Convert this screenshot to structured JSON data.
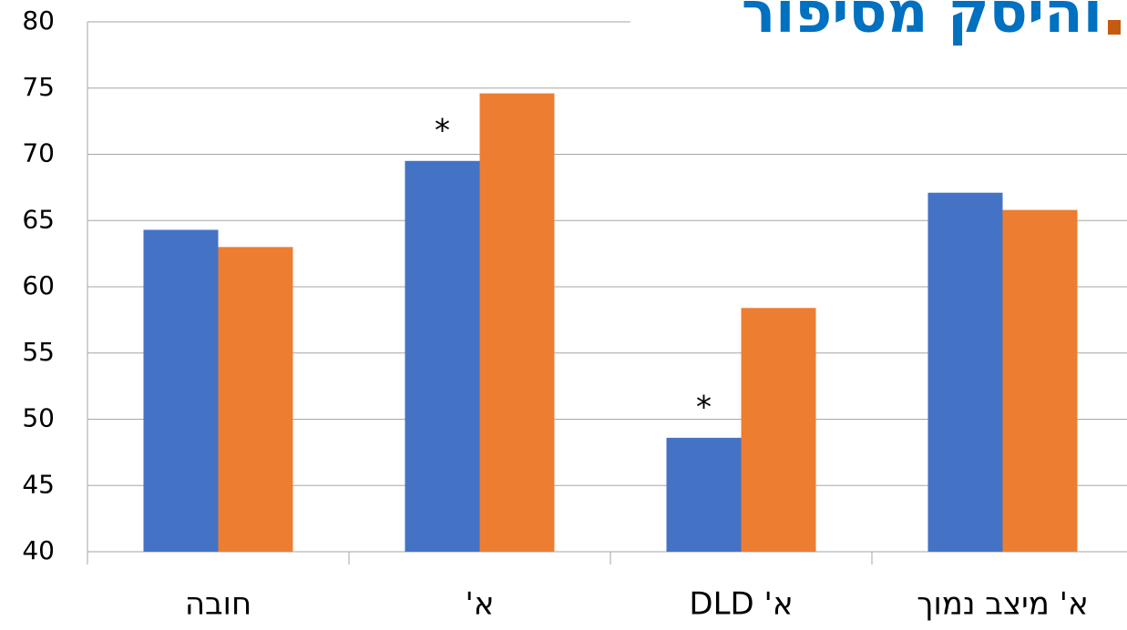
{
  "chart_data": {
    "type": "bar",
    "title": "והיסק מסיפור",
    "categories": [
      "חובה",
      "א'",
      "א' DLD",
      "א' מיצב נמוך"
    ],
    "series": [
      {
        "color": "#4472c4",
        "values": [
          64.3,
          69.5,
          48.6,
          67.1
        ]
      },
      {
        "color": "#ed7d31",
        "values": [
          63.0,
          74.6,
          58.4,
          65.8
        ]
      }
    ],
    "annotations": [
      {
        "text": "*",
        "category": "א'"
      },
      {
        "text": "*",
        "category": "א' DLD"
      }
    ],
    "ylim": [
      40,
      80
    ],
    "yticks": [
      40,
      45,
      50,
      55,
      60,
      65,
      70,
      75,
      80
    ],
    "grid": true
  }
}
